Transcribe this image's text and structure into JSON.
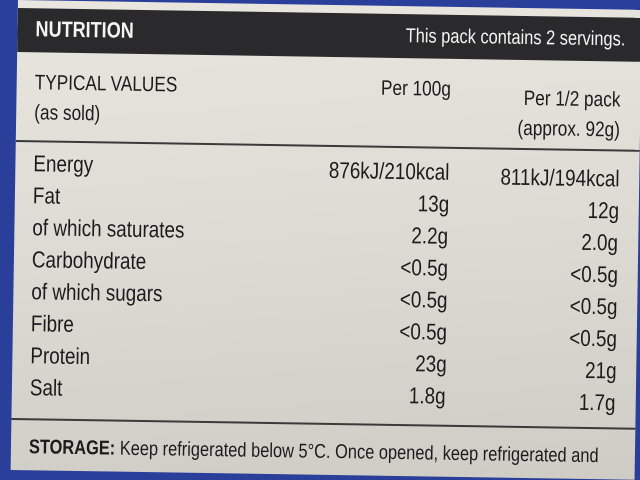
{
  "header": {
    "title": "NUTRITION",
    "note": "This pack contains 2 servings."
  },
  "columns": {
    "label_line1": "TYPICAL VALUES",
    "label_line2": "(as sold)",
    "per100": "Per 100g",
    "perpack_line1": "Per 1/2 pack",
    "perpack_line2": "(approx. 92g)"
  },
  "rows": [
    {
      "name": "Energy",
      "per100": "876kJ/210kcal",
      "perpack": "811kJ/194kcal"
    },
    {
      "name": "Fat",
      "per100": "13g",
      "perpack": "12g"
    },
    {
      "name": "of which saturates",
      "per100": "2.2g",
      "perpack": "2.0g"
    },
    {
      "name": "Carbohydrate",
      "per100": "<0.5g",
      "perpack": "<0.5g"
    },
    {
      "name": "of which sugars",
      "per100": "<0.5g",
      "perpack": "<0.5g"
    },
    {
      "name": "Fibre",
      "per100": "<0.5g",
      "perpack": "<0.5g"
    },
    {
      "name": "Protein",
      "per100": "23g",
      "perpack": "21g"
    },
    {
      "name": "Salt",
      "per100": "1.8g",
      "perpack": "1.7g"
    }
  ],
  "storage": {
    "label": "STORAGE:",
    "text": " Keep refrigerated below 5°C. Once opened, keep refrigerated and"
  }
}
